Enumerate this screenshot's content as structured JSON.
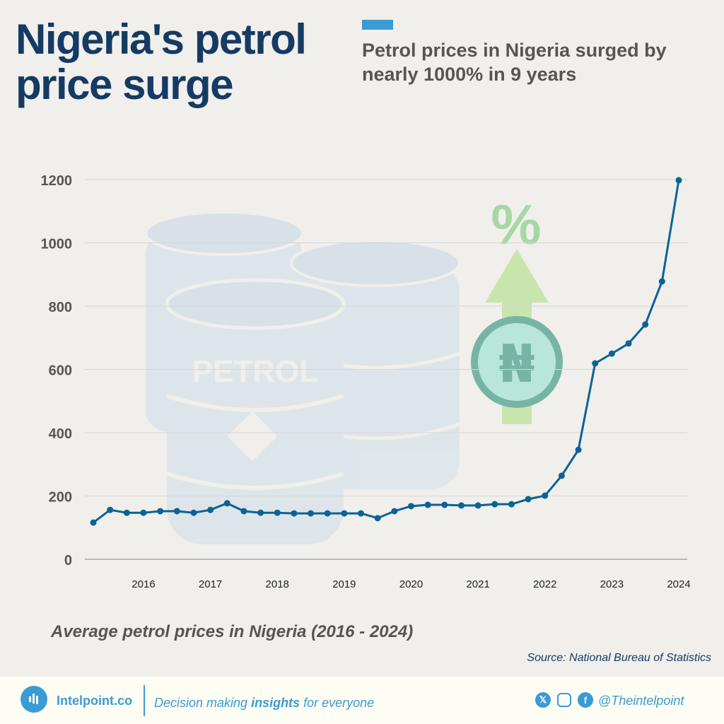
{
  "header": {
    "title_line1": "Nigeria's petrol",
    "title_line2": "price surge",
    "subtitle": "Petrol prices in Nigeria surged by nearly 1000% in 9 years"
  },
  "illustration": {
    "barrel_text": "PETROL",
    "percent_symbol": "%",
    "currency_symbol": "₦"
  },
  "chart_data": {
    "type": "line",
    "title": "Average petrol prices in Nigeria (2016 - 2024)",
    "xlabel": "",
    "ylabel": "",
    "ylim": [
      0,
      1200
    ],
    "yticks": [
      0,
      200,
      400,
      600,
      800,
      1000,
      1200
    ],
    "grid": true,
    "x_tick_labels": [
      {
        "index": 3,
        "label": "2016"
      },
      {
        "index": 7,
        "label": "2017"
      },
      {
        "index": 11,
        "label": "2018"
      },
      {
        "index": 15,
        "label": "2019"
      },
      {
        "index": 19,
        "label": "2020"
      },
      {
        "index": 23,
        "label": "2021"
      },
      {
        "index": 27,
        "label": "2022"
      },
      {
        "index": 31,
        "label": "2023"
      },
      {
        "index": 35,
        "label": "2024"
      }
    ],
    "values": [
      116,
      156,
      147,
      147,
      152,
      152,
      147,
      156,
      177,
      152,
      147,
      147,
      145,
      145,
      145,
      145,
      145,
      130,
      152,
      168,
      172,
      172,
      170,
      170,
      174,
      174,
      190,
      201,
      264,
      346,
      619,
      650,
      682,
      742,
      878,
      1198
    ],
    "line_color": "#0b6394"
  },
  "source": "Source: National Bureau of Statistics",
  "footer": {
    "brand": "Intelpoint.co",
    "tagline_pre": "Decision making ",
    "tagline_bold": "insights",
    "tagline_post": " for everyone",
    "handle": "@Theintelpoint",
    "accent": "#3a9bd5"
  }
}
